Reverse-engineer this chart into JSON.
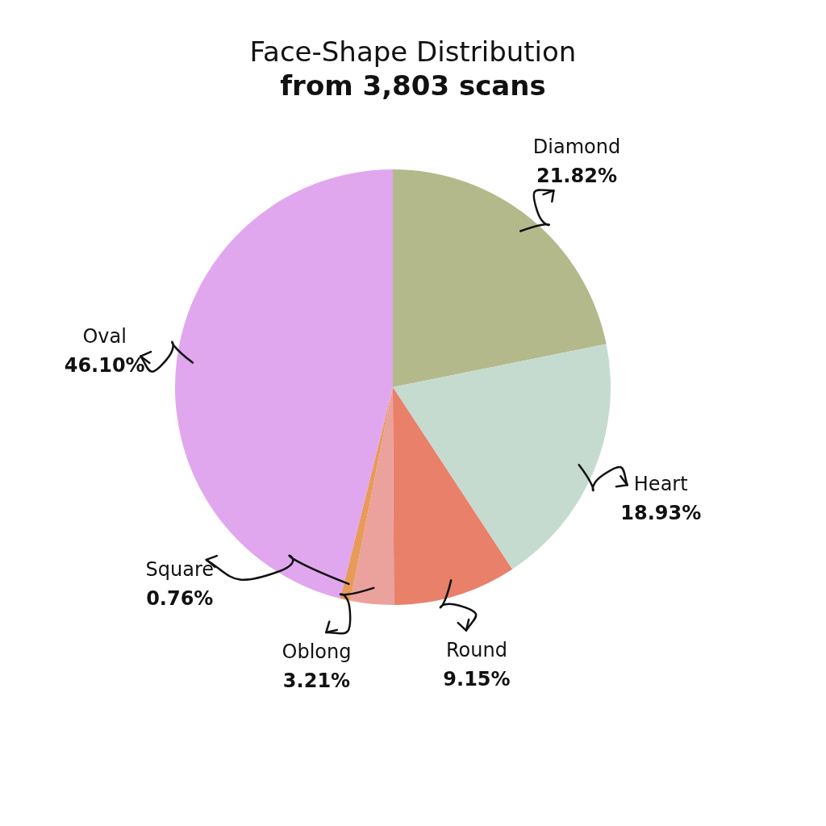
{
  "chart_data": {
    "type": "pie",
    "title": "Face-Shape Distribution",
    "subtitle": "from 3,803 scans",
    "categories": [
      "Diamond",
      "Heart",
      "Round",
      "Oblong",
      "Square",
      "Oval"
    ],
    "values": [
      21.82,
      18.93,
      9.15,
      3.21,
      0.76,
      46.1
    ],
    "colors": [
      "#b3b98a",
      "#c6dbd0",
      "#e8806a",
      "#eba19c",
      "#e89a5a",
      "#e1a7ee"
    ],
    "value_labels": [
      "21.82%",
      "18.93%",
      "9.15%",
      "3.21%",
      "0.76%",
      "46.10%"
    ]
  }
}
